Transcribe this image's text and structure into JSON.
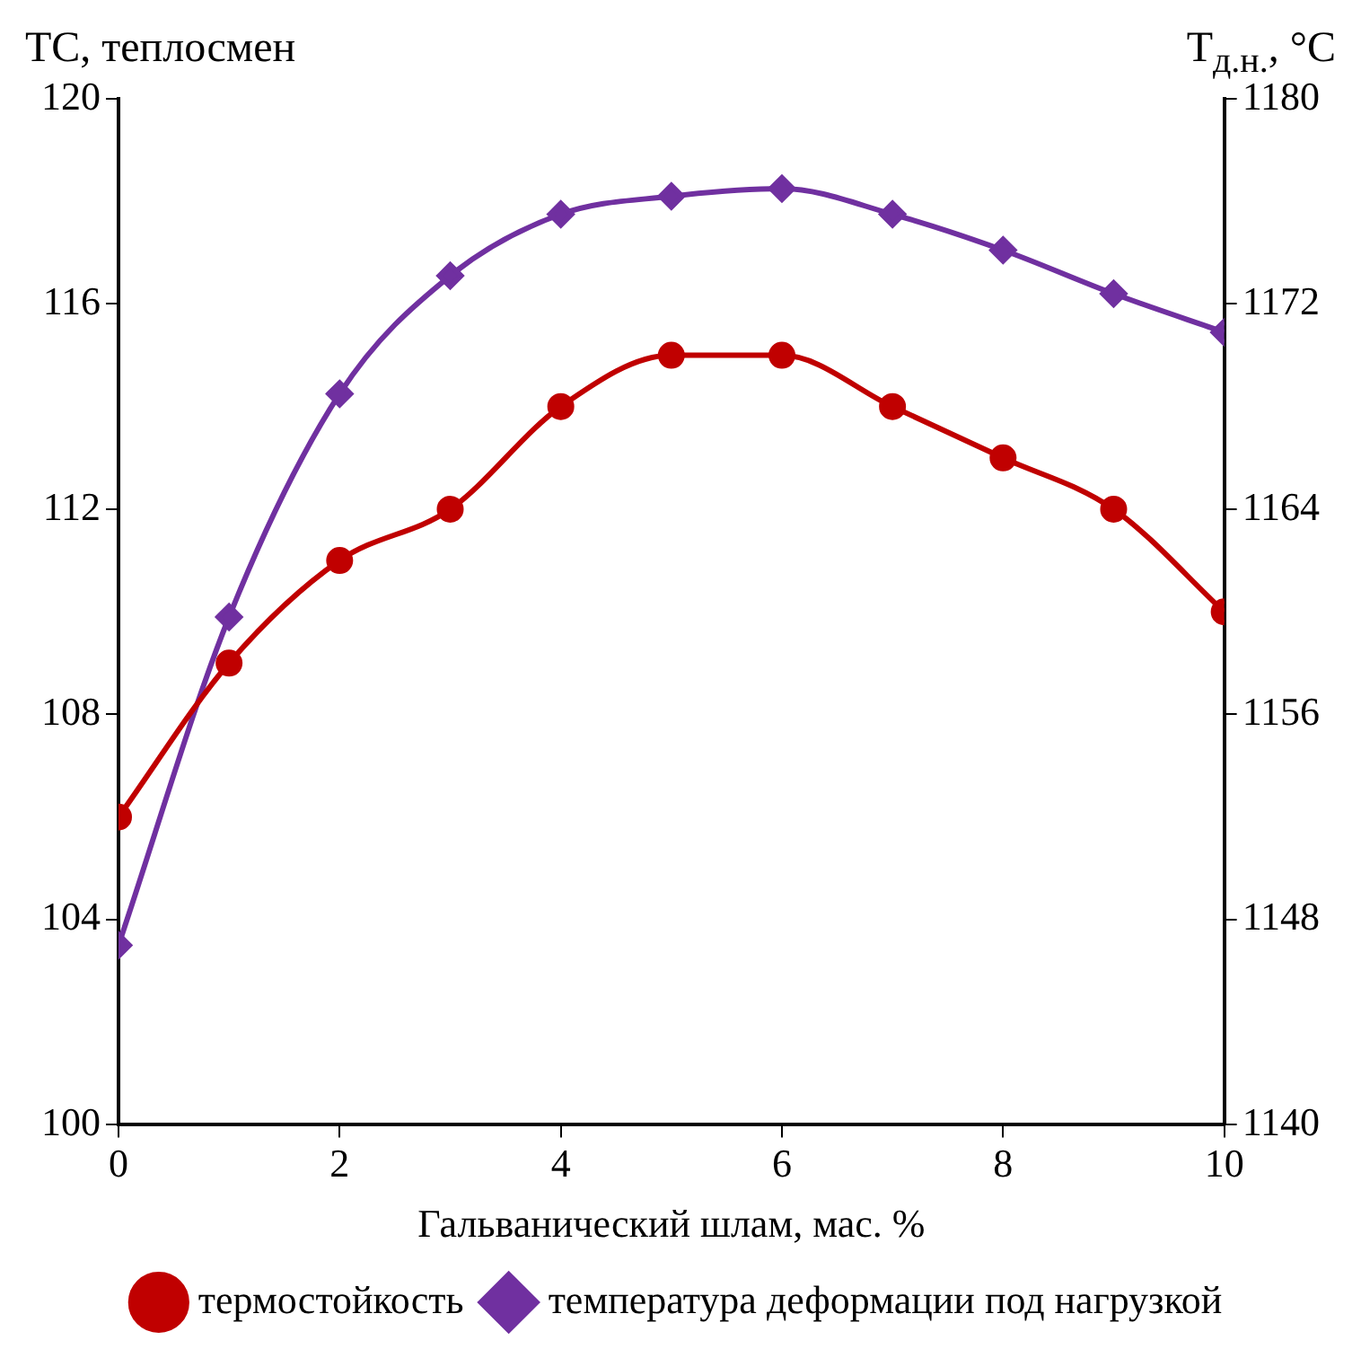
{
  "chart_data": {
    "type": "line",
    "xlabel": "Гальванический шлам, мас. %",
    "ylabel": "ТС, теплосмен",
    "y2label": "Т$_{д.н.}$, °С",
    "x": [
      0,
      1,
      2,
      3,
      4,
      5,
      6,
      7,
      8,
      9,
      10
    ],
    "series": [
      {
        "name": "термостойкость",
        "color": "#c00000",
        "marker": "circle",
        "values": [
          106,
          109,
          111,
          112,
          114,
          115,
          115,
          114,
          113,
          112,
          110
        ]
      },
      {
        "name": "температура деформации под нагрузкой",
        "color": "#7030a0",
        "marker": "diamond",
        "axis": "y2",
        "values": [
          1147.0,
          1159.8,
          1168.5,
          1173.1,
          1175.5,
          1176.2,
          1176.5,
          1175.5,
          1174.1,
          1172.4,
          1170.9
        ]
      }
    ],
    "xlim": [
      0,
      10
    ],
    "xticks": [
      0,
      2,
      4,
      6,
      8,
      10
    ],
    "ylim": [
      100,
      120
    ],
    "yticks": [
      100,
      104,
      108,
      112,
      116,
      120
    ],
    "y2lim": [
      1140,
      1180
    ],
    "y2ticks": [
      1140,
      1148,
      1156,
      1164,
      1172,
      1180
    ],
    "grid": false,
    "legend": "bottom",
    "line_style": "solid"
  }
}
